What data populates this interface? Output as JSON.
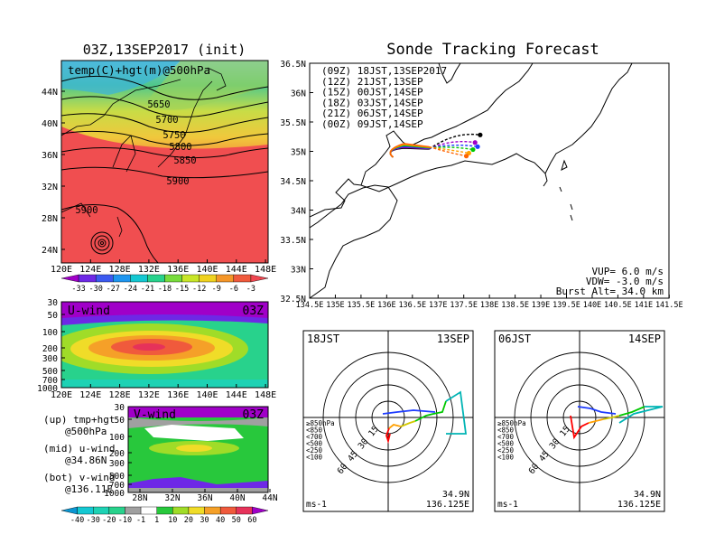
{
  "left_title": "03Z,13SEP2017 (init)",
  "right_title": "Sonde Tracking Forecast",
  "map500": {
    "label": "temp(C)+hgt(m)@500hPa",
    "contour_labels": [
      "5650",
      "5700",
      "5750",
      "5800",
      "5850",
      "5900",
      "5900"
    ],
    "lat_ticks": [
      "44N",
      "40N",
      "36N",
      "32N",
      "28N",
      "24N"
    ],
    "lon_ticks": [
      "120E",
      "124E",
      "128E",
      "132E",
      "136E",
      "140E",
      "144E",
      "148E"
    ],
    "colorbar_ticks": [
      "-33",
      "-30",
      "-27",
      "-24",
      "-21",
      "-18",
      "-15",
      "-12",
      "-9",
      "-6",
      "-3"
    ],
    "colorbar_colors": [
      "#a000c8",
      "#6e28e6",
      "#3c5af0",
      "#1e96f0",
      "#14c8d2",
      "#28d28c",
      "#78dc3c",
      "#c8e628",
      "#f0d21e",
      "#f59628",
      "#f05a3c",
      "#f04650"
    ]
  },
  "uwind": {
    "label": "U-wind",
    "time": "03Z",
    "p_ticks": [
      "30",
      "50",
      "100",
      "200",
      "300",
      "500",
      "700",
      "1000"
    ],
    "lon_ticks": [
      "120E",
      "124E",
      "128E",
      "132E",
      "136E",
      "140E",
      "144E",
      "148E"
    ]
  },
  "vwind": {
    "label": "V-wind",
    "time": "03Z",
    "p_ticks": [
      "30",
      "50",
      "100",
      "200",
      "300",
      "500",
      "700",
      "1000"
    ],
    "lat_ticks": [
      "28N",
      "32N",
      "36N",
      "40N",
      "44N"
    ],
    "colorbar_ticks": [
      "-40",
      "-30",
      "-20",
      "-10",
      "-1",
      "1",
      "10",
      "20",
      "30",
      "40",
      "50",
      "60"
    ],
    "colorbar_colors": [
      "#0a96d2",
      "#14c8d2",
      "#1ed2b4",
      "#28d28c",
      "#a0a0a0",
      "#ffffff",
      "#28c83c",
      "#a0dc28",
      "#f0dc28",
      "#f5a028",
      "#f05a3c",
      "#e6325a",
      "#a000c8"
    ]
  },
  "legend_notes": [
    {
      "a": "(up) tmp+hgt",
      "b": "@500hPa"
    },
    {
      "a": "(mid) u-wind",
      "b": "@34.86N"
    },
    {
      "a": "(bot) v-wind",
      "b": "@136.11E"
    }
  ],
  "track_map": {
    "lat_ticks": [
      "36.5N",
      "36N",
      "35.5N",
      "35N",
      "34.5N",
      "34N",
      "33.5N",
      "33N",
      "32.5N"
    ],
    "lon_ticks": [
      "134.5E",
      "135E",
      "135.5E",
      "136E",
      "136.5E",
      "137E",
      "137.5E",
      "138E",
      "138.5E",
      "139E",
      "139.5E",
      "140E",
      "140.5E",
      "141E",
      "141.5E"
    ],
    "legend": [
      {
        "text": "(09Z)  18JST,13SEP2017",
        "color": "#000000"
      },
      {
        "text": "(12Z)  21JST,13SEP",
        "color": "#a000c8"
      },
      {
        "text": "(15Z)  00JST,14SEP",
        "color": "#1e3cff"
      },
      {
        "text": "(18Z)  03JST,14SEP",
        "color": "#00c800"
      },
      {
        "text": "(21Z)  06JST,14SEP",
        "color": "#ffa000"
      },
      {
        "text": "(00Z)  09JST,14SEP",
        "color": "#ff6400"
      }
    ],
    "params": [
      "VUP=  6.0  m/s",
      "VDW= -3.0  m/s",
      "Burst Alt=  34.0  km"
    ],
    "tracks": [
      {
        "color": "#000000",
        "end": [
          137.82,
          35.28
        ]
      },
      {
        "color": "#a000c8",
        "end": [
          137.72,
          35.15
        ]
      },
      {
        "color": "#1e3cff",
        "end": [
          137.77,
          35.08
        ]
      },
      {
        "color": "#00c800",
        "end": [
          137.68,
          35.03
        ]
      },
      {
        "color": "#ffa000",
        "end": [
          137.6,
          34.97
        ]
      },
      {
        "color": "#ff6400",
        "end": [
          137.55,
          34.92
        ]
      }
    ],
    "launch": [
      136.125,
      34.9
    ]
  },
  "polar_left": {
    "time": "18JST",
    "date": "13SEP",
    "ring_labels": [
      "15",
      "30",
      "45",
      "60"
    ],
    "levels": [
      "≥850hPa",
      "<850",
      "<700",
      "<500",
      "<250",
      "<100"
    ],
    "level_colors": [
      "#ff0000",
      "#ffa000",
      "#d2c800",
      "#00c800",
      "#00b4b4",
      "#1e3cff"
    ],
    "unit": "ms-1",
    "lat": "34.9N",
    "lon": "136.125E"
  },
  "polar_right": {
    "time": "06JST",
    "date": "14SEP",
    "ring_labels": [
      "15",
      "30",
      "45",
      "60"
    ],
    "levels": [
      "≥850hPa",
      "<850",
      "<700",
      "<500",
      "<250",
      "<100"
    ],
    "level_colors": [
      "#ff0000",
      "#ffa000",
      "#d2c800",
      "#00c800",
      "#00b4b4",
      "#1e3cff"
    ],
    "unit": "ms-1",
    "lat": "34.9N",
    "lon": "136.125E"
  }
}
